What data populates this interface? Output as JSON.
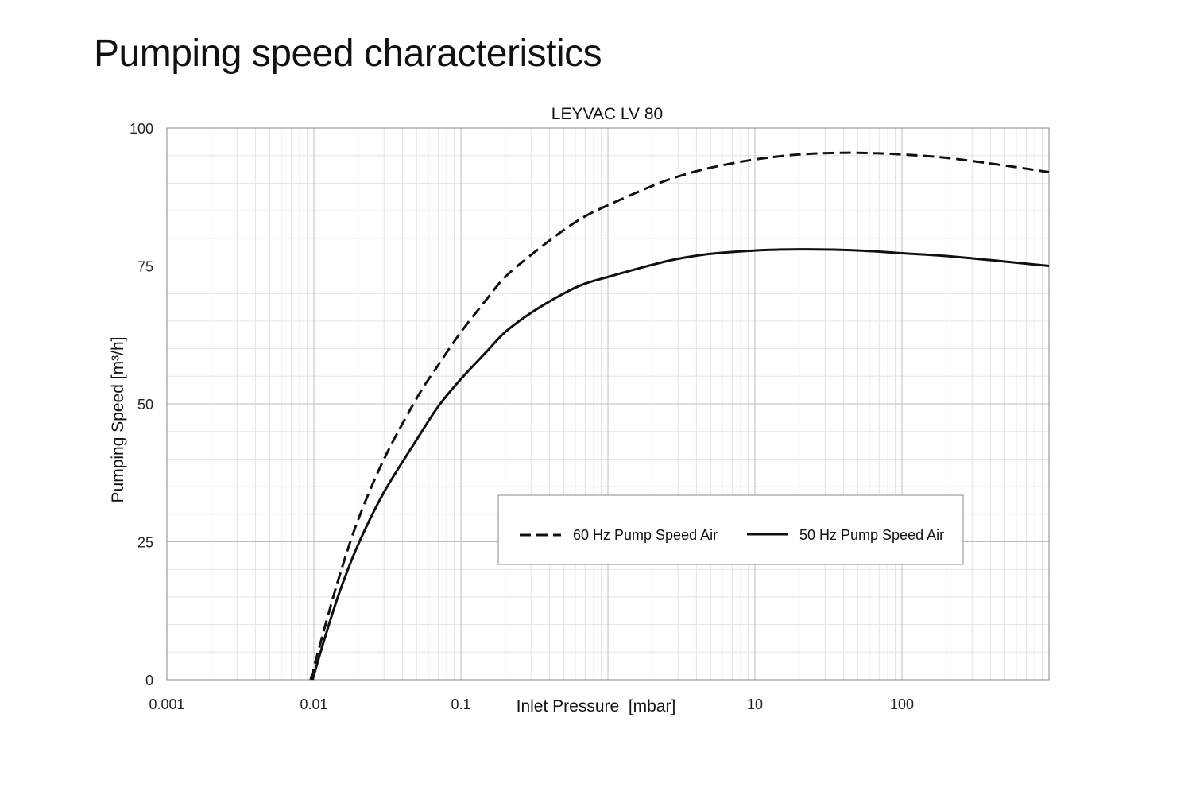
{
  "page": {
    "title": "Pumping speed characteristics"
  },
  "chart_data": {
    "type": "line",
    "title": "LEYVAC  LV 80",
    "xlabel": "Inlet Pressure  [mbar]",
    "ylabel": "Pumping Speed [m³/h]",
    "x_scale": "log",
    "xlim": [
      0.001,
      1000
    ],
    "ylim": [
      0,
      100
    ],
    "x_ticks": [
      0.001,
      0.01,
      0.1,
      10,
      100
    ],
    "x_tick_labels": [
      "0.001",
      "0.01",
      "0.1",
      "10",
      "100"
    ],
    "y_ticks": [
      0,
      25,
      50,
      75,
      100
    ],
    "y_tick_labels": [
      "0",
      "25",
      "50",
      "75",
      "100"
    ],
    "grid": true,
    "legend_position": "lower-right",
    "series": [
      {
        "name": "60 Hz Pump Speed Air",
        "style": "dashed",
        "color": "#111111",
        "x": [
          0.0095,
          0.012,
          0.015,
          0.02,
          0.03,
          0.05,
          0.07,
          0.1,
          0.15,
          0.2,
          0.3,
          0.5,
          0.7,
          1,
          2,
          3,
          5,
          10,
          20,
          40,
          70,
          100,
          200,
          500,
          1000
        ],
        "y": [
          0,
          10,
          19,
          29,
          40,
          51,
          57,
          63,
          69,
          73,
          77,
          81.5,
          84,
          86,
          89.5,
          91.2,
          92.8,
          94.3,
          95.2,
          95.5,
          95.4,
          95.2,
          94.6,
          93.2,
          92
        ]
      },
      {
        "name": "50 Hz Pump Speed Air",
        "style": "solid",
        "color": "#111111",
        "x": [
          0.0098,
          0.012,
          0.015,
          0.02,
          0.03,
          0.05,
          0.07,
          0.1,
          0.15,
          0.2,
          0.3,
          0.5,
          0.7,
          1,
          2,
          3,
          5,
          10,
          20,
          40,
          70,
          100,
          200,
          500,
          1000
        ],
        "y": [
          0,
          8,
          16,
          24.5,
          34,
          43.5,
          49.5,
          54.5,
          59.5,
          63,
          66.5,
          70,
          71.8,
          73,
          75.2,
          76.3,
          77.2,
          77.8,
          78,
          77.9,
          77.6,
          77.3,
          76.8,
          75.8,
          75
        ]
      }
    ]
  }
}
